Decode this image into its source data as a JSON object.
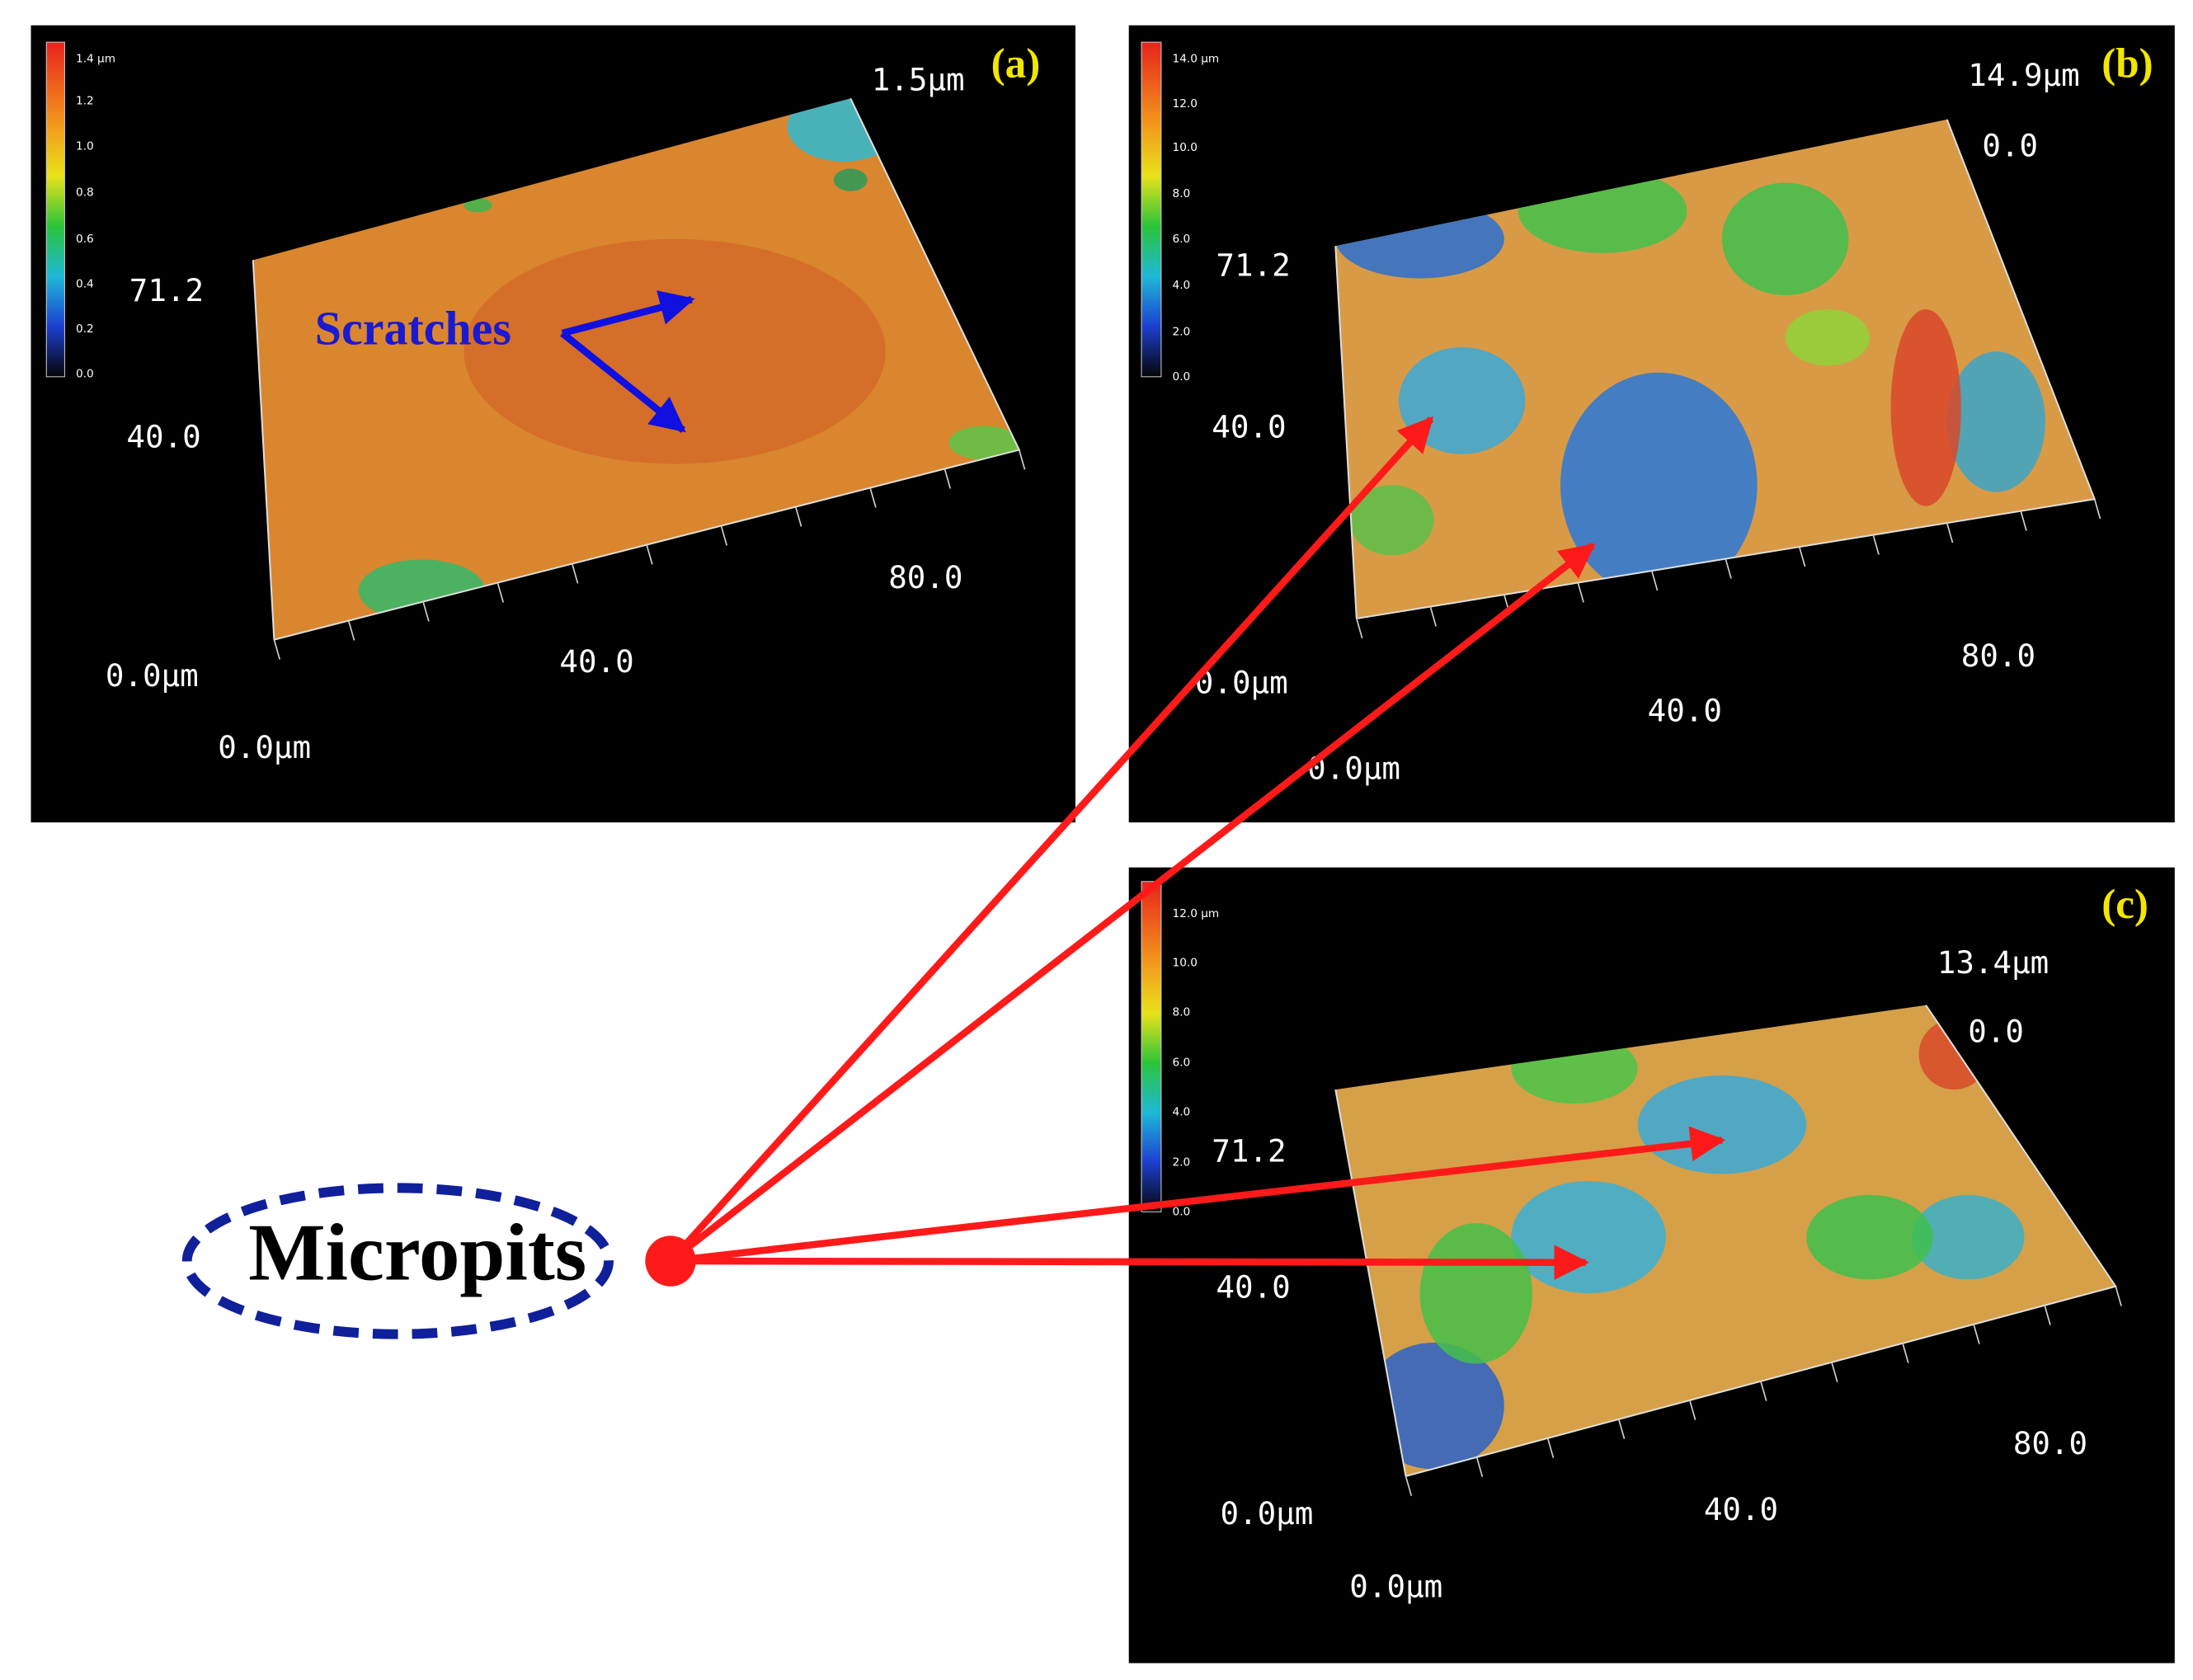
{
  "panels": [
    {
      "label": "(a)",
      "colorbar_ticks": [
        "1.4 μm",
        "1.2",
        "1.0",
        "0.8",
        "0.6",
        "0.4",
        "0.2",
        "0.0"
      ],
      "axis_labels": [
        "1.5μm",
        "71.2",
        "40.0",
        "0.0μm",
        "0.0μm",
        "40.0",
        "80.0"
      ]
    },
    {
      "label": "(b)",
      "colorbar_ticks": [
        "14.0 μm",
        "12.0",
        "10.0",
        "8.0",
        "6.0",
        "4.0",
        "2.0",
        "0.0"
      ],
      "axis_labels": [
        "14.9μm",
        "0.0",
        "71.2",
        "40.0",
        "0.0μm",
        "0.0μm",
        "40.0",
        "80.0"
      ]
    },
    {
      "label": "(c)",
      "colorbar_ticks": [
        "12.0 μm",
        "10.0",
        "8.0",
        "6.0",
        "4.0",
        "2.0",
        "0.0"
      ],
      "axis_labels": [
        "13.4μm",
        "0.0",
        "71.2",
        "40.0",
        "0.0μm",
        "0.0μm",
        "40.0",
        "80.0"
      ]
    }
  ],
  "annotations": {
    "scratches": "Scratches",
    "micropits": "Micropits"
  }
}
